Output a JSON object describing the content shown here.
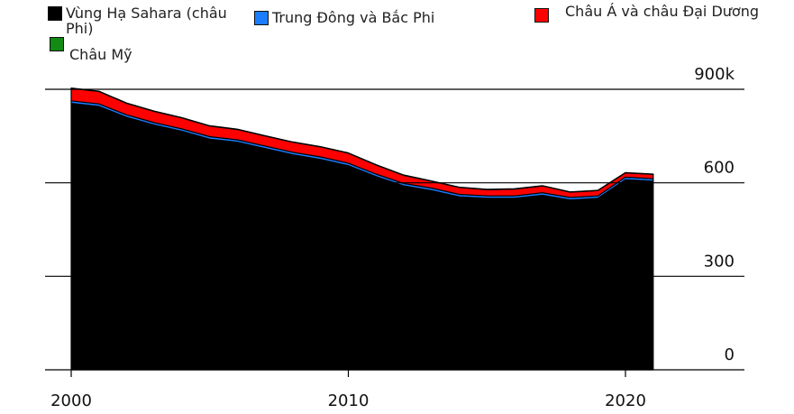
{
  "chart_data": {
    "type": "area",
    "stacked": true,
    "x": [
      2000,
      2001,
      2002,
      2003,
      2004,
      2005,
      2006,
      2007,
      2008,
      2009,
      2010,
      2011,
      2012,
      2013,
      2014,
      2015,
      2016,
      2017,
      2018,
      2019,
      2020,
      2021
    ],
    "series": [
      {
        "name": "Vùng Hạ Sahara (châu Phi)",
        "color": "#000000",
        "values": [
          855,
          845,
          810,
          785,
          765,
          740,
          730,
          710,
          690,
          675,
          655,
          620,
          590,
          575,
          555,
          550,
          550,
          560,
          545,
          550,
          610,
          605
        ]
      },
      {
        "name": "Trung Đông và Bắc Phi",
        "color": "#1a7dff",
        "values": [
          8,
          8,
          8,
          8,
          8,
          8,
          8,
          8,
          8,
          8,
          8,
          8,
          8,
          8,
          8,
          8,
          8,
          8,
          8,
          8,
          8,
          8
        ]
      },
      {
        "name": "Châu Á và châu Đại Dương",
        "color": "#ff0000",
        "values": [
          40,
          40,
          37,
          36,
          35,
          34,
          33,
          32,
          32,
          32,
          32,
          29,
          26,
          22,
          22,
          20,
          22,
          22,
          17,
          17,
          14,
          14
        ]
      },
      {
        "name": "Châu Mỹ",
        "color": "#138a13",
        "values": [
          1,
          1,
          1,
          1,
          1,
          1,
          1,
          1,
          1,
          1,
          1,
          1,
          1,
          1,
          1,
          1,
          1,
          1,
          1,
          1,
          1,
          1
        ]
      }
    ],
    "xlim": [
      2000,
      2024
    ],
    "ylim": [
      0,
      900
    ],
    "x_ticks": [
      2000,
      2010,
      2020
    ],
    "y_ticks": [
      0,
      300,
      600,
      900
    ],
    "y_tick_labels": [
      "0",
      "300",
      "600",
      "900k"
    ],
    "gridlines": true,
    "legend_position": "top"
  },
  "legend": [
    {
      "label": "Vùng Hạ Sahara (châu Phi)",
      "color": "#000000"
    },
    {
      "label": "Trung Đông và Bắc Phi",
      "color": "#1a7dff"
    },
    {
      "label": "Châu Á và châu Đại Dương",
      "color": "#ff0000"
    },
    {
      "label": "Châu Mỹ",
      "color": "#138a13"
    }
  ]
}
